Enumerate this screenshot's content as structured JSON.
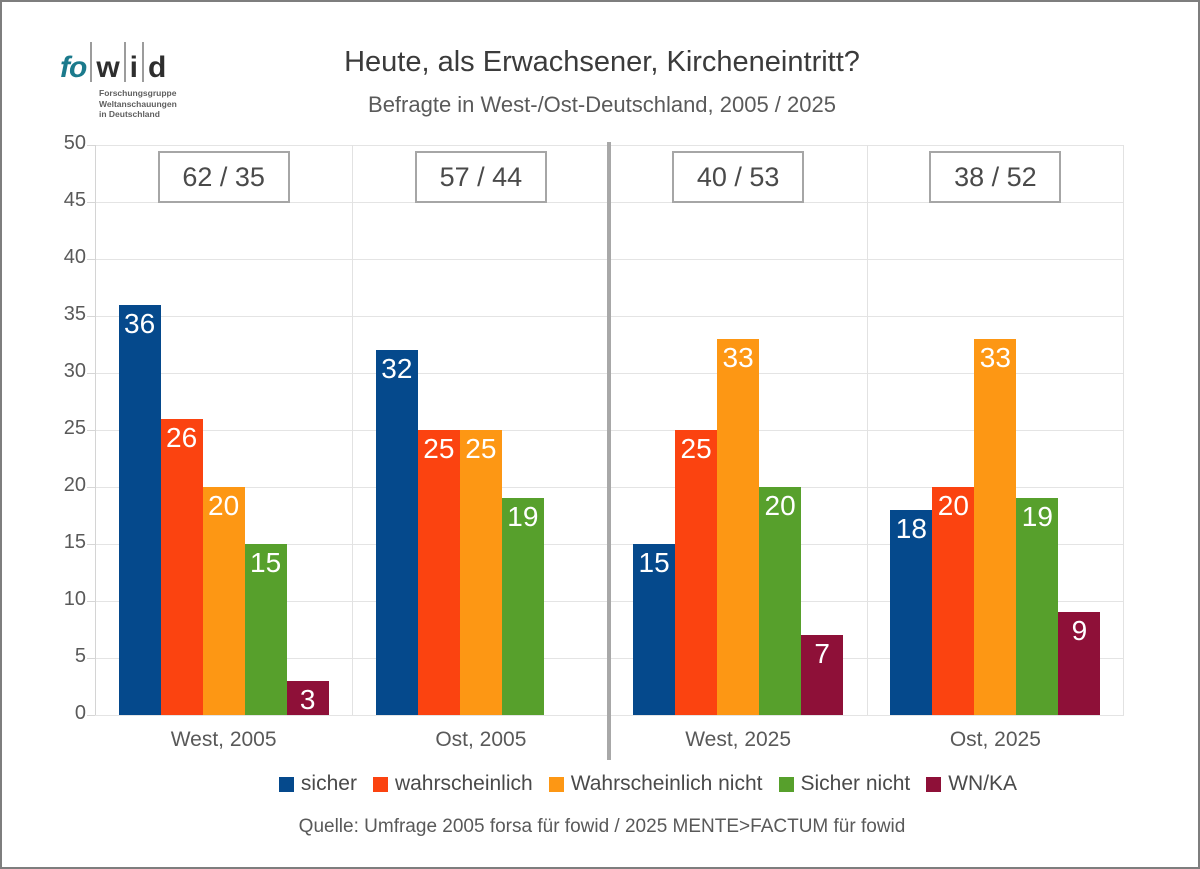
{
  "logo": {
    "prefix": "fo",
    "letters": [
      "w",
      "i",
      "d"
    ],
    "sub_lines": [
      "Forschungsgruppe",
      "Weltanschauungen",
      "in Deutschland"
    ],
    "teal": "#1b7a8c"
  },
  "header": {
    "title": "Heute, als Erwachsener, Kircheneintritt?",
    "subtitle": "Befragte in West-/Ost-Deutschland, 2005 / 2025"
  },
  "chart_data": {
    "type": "bar",
    "title": "Heute, als Erwachsener, Kircheneintritt?",
    "subtitle": "Befragte in West-/Ost-Deutschland, 2005 / 2025",
    "categories": [
      "West, 2005",
      "Ost, 2005",
      "West, 2025",
      "Ost, 2025"
    ],
    "series": [
      {
        "name": "sicher",
        "color": "#05498c",
        "values": [
          36,
          32,
          15,
          18
        ]
      },
      {
        "name": "wahrscheinlich",
        "color": "#fb4310",
        "values": [
          26,
          25,
          25,
          20
        ]
      },
      {
        "name": "Wahrscheinlich nicht",
        "color": "#fd9714",
        "values": [
          20,
          25,
          33,
          33
        ]
      },
      {
        "name": "Sicher nicht",
        "color": "#57a02c",
        "values": [
          15,
          19,
          20,
          19
        ]
      },
      {
        "name": "WN/KA",
        "color": "#8e1038",
        "values": [
          3,
          0,
          7,
          9
        ]
      }
    ],
    "group_annotations": [
      "62 / 35",
      "57 / 44",
      "40 / 53",
      "38 / 52"
    ],
    "ylim": [
      0,
      50
    ],
    "yticks": [
      0,
      5,
      10,
      15,
      20,
      25,
      30,
      35,
      40,
      45,
      50
    ],
    "grid": true,
    "legend_position": "bottom",
    "divider_after_category": "Ost, 2005"
  },
  "footer": {
    "source": "Quelle: Umfrage 2005 forsa für fowid / 2025 MENTE>FACTUM für fowid"
  }
}
